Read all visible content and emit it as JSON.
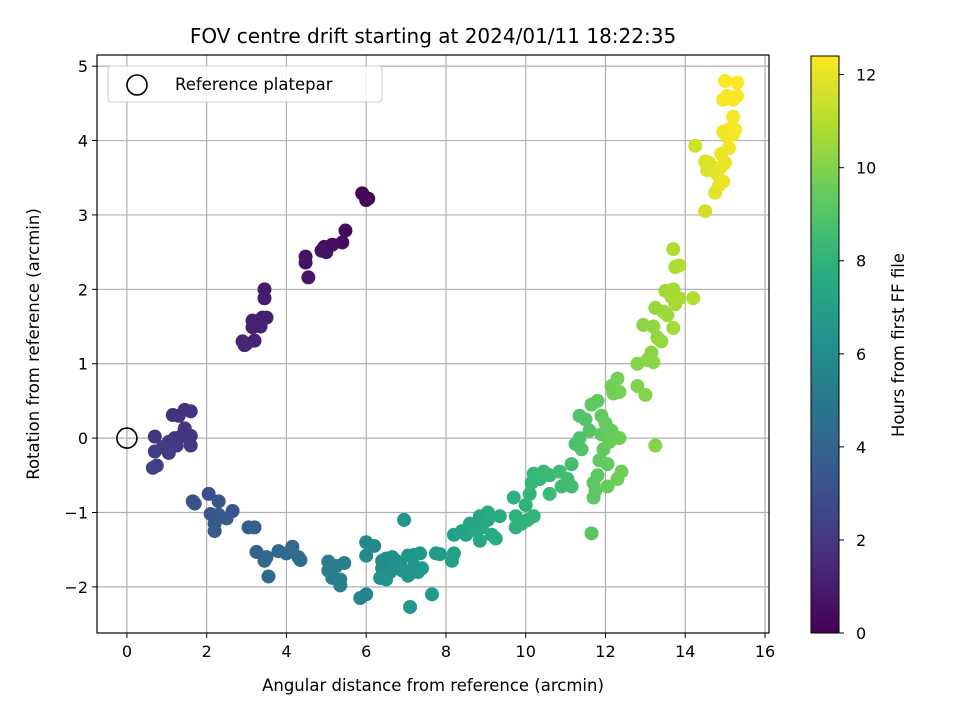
{
  "chart_data": {
    "type": "scatter",
    "title": "FOV centre drift starting at 2024/01/11 18:22:35",
    "xlabel": "Angular distance from reference (arcmin)",
    "ylabel": "Rotation from reference (arcmin)",
    "xlim": [
      -0.75,
      16.1
    ],
    "ylim": [
      -2.62,
      5.15
    ],
    "xticks": [
      0,
      2,
      4,
      6,
      8,
      10,
      12,
      14,
      16
    ],
    "yticks": [
      -2,
      -1,
      0,
      1,
      2,
      3,
      4,
      5
    ],
    "grid": true,
    "legend": {
      "placement": "top-left",
      "entries": [
        {
          "label": "Reference platepar",
          "marker": "open-circle"
        }
      ]
    },
    "reference_point": {
      "x": 0,
      "y": 0
    },
    "colorbar": {
      "label": "Hours from first FF file",
      "range": [
        0,
        12.4
      ],
      "ticks": [
        0,
        2,
        4,
        6,
        8,
        10,
        12
      ],
      "colormap": "viridis"
    },
    "points": [
      {
        "x": 5.9,
        "y": 3.29,
        "c": 0.1
      },
      {
        "x": 6.05,
        "y": 3.22,
        "c": 0.15
      },
      {
        "x": 6.0,
        "y": 3.2,
        "c": 0.2
      },
      {
        "x": 5.48,
        "y": 2.79,
        "c": 0.3
      },
      {
        "x": 5.4,
        "y": 2.63,
        "c": 0.35
      },
      {
        "x": 5.15,
        "y": 2.6,
        "c": 0.45
      },
      {
        "x": 4.95,
        "y": 2.57,
        "c": 0.5
      },
      {
        "x": 5.0,
        "y": 2.5,
        "c": 0.55
      },
      {
        "x": 4.88,
        "y": 2.52,
        "c": 0.55
      },
      {
        "x": 4.48,
        "y": 2.44,
        "c": 0.6
      },
      {
        "x": 4.48,
        "y": 2.36,
        "c": 0.65
      },
      {
        "x": 4.55,
        "y": 2.16,
        "c": 0.7
      },
      {
        "x": 3.45,
        "y": 2.0,
        "c": 0.9
      },
      {
        "x": 3.45,
        "y": 1.88,
        "c": 0.95
      },
      {
        "x": 3.4,
        "y": 1.62,
        "c": 1.0
      },
      {
        "x": 3.5,
        "y": 1.62,
        "c": 1.05
      },
      {
        "x": 3.15,
        "y": 1.58,
        "c": 1.1
      },
      {
        "x": 3.3,
        "y": 1.55,
        "c": 1.1
      },
      {
        "x": 3.35,
        "y": 1.5,
        "c": 1.15
      },
      {
        "x": 3.15,
        "y": 1.49,
        "c": 1.15
      },
      {
        "x": 3.2,
        "y": 1.31,
        "c": 1.2
      },
      {
        "x": 2.9,
        "y": 1.3,
        "c": 1.2
      },
      {
        "x": 3.0,
        "y": 1.27,
        "c": 1.25
      },
      {
        "x": 2.95,
        "y": 1.25,
        "c": 1.25
      },
      {
        "x": 1.45,
        "y": 0.38,
        "c": 1.7
      },
      {
        "x": 1.6,
        "y": 0.36,
        "c": 1.75
      },
      {
        "x": 1.15,
        "y": 0.31,
        "c": 1.8
      },
      {
        "x": 1.3,
        "y": 0.3,
        "c": 1.8
      },
      {
        "x": 1.45,
        "y": 0.13,
        "c": 1.9
      },
      {
        "x": 1.6,
        "y": 0.03,
        "c": 1.95
      },
      {
        "x": 1.35,
        "y": 0.02,
        "c": 2.0
      },
      {
        "x": 1.2,
        "y": 0.0,
        "c": 2.0
      },
      {
        "x": 0.7,
        "y": 0.02,
        "c": 2.05
      },
      {
        "x": 1.05,
        "y": -0.05,
        "c": 2.1
      },
      {
        "x": 1.6,
        "y": -0.1,
        "c": 2.15
      },
      {
        "x": 1.25,
        "y": -0.1,
        "c": 2.15
      },
      {
        "x": 0.9,
        "y": -0.12,
        "c": 2.2
      },
      {
        "x": 0.7,
        "y": -0.18,
        "c": 2.25
      },
      {
        "x": 1.05,
        "y": -0.2,
        "c": 2.25
      },
      {
        "x": 0.75,
        "y": -0.37,
        "c": 2.35
      },
      {
        "x": 0.65,
        "y": -0.4,
        "c": 2.4
      },
      {
        "x": 2.05,
        "y": -0.75,
        "c": 3.05
      },
      {
        "x": 1.65,
        "y": -0.85,
        "c": 3.1
      },
      {
        "x": 1.7,
        "y": -0.88,
        "c": 3.15
      },
      {
        "x": 2.3,
        "y": -0.85,
        "c": 3.2
      },
      {
        "x": 2.65,
        "y": -0.98,
        "c": 3.3
      },
      {
        "x": 2.1,
        "y": -1.02,
        "c": 3.35
      },
      {
        "x": 2.3,
        "y": -1.03,
        "c": 3.4
      },
      {
        "x": 2.5,
        "y": -1.08,
        "c": 3.45
      },
      {
        "x": 2.2,
        "y": -1.15,
        "c": 3.5
      },
      {
        "x": 2.2,
        "y": -1.25,
        "c": 3.55
      },
      {
        "x": 3.05,
        "y": -1.2,
        "c": 3.7
      },
      {
        "x": 3.2,
        "y": -1.2,
        "c": 3.75
      },
      {
        "x": 3.25,
        "y": -1.53,
        "c": 4.0
      },
      {
        "x": 3.5,
        "y": -1.6,
        "c": 4.1
      },
      {
        "x": 3.45,
        "y": -1.65,
        "c": 4.15
      },
      {
        "x": 3.8,
        "y": -1.52,
        "c": 4.2
      },
      {
        "x": 4.0,
        "y": -1.55,
        "c": 4.25
      },
      {
        "x": 4.15,
        "y": -1.46,
        "c": 4.3
      },
      {
        "x": 4.3,
        "y": -1.6,
        "c": 4.35
      },
      {
        "x": 4.35,
        "y": -1.64,
        "c": 4.4
      },
      {
        "x": 3.55,
        "y": -1.86,
        "c": 4.3
      },
      {
        "x": 5.05,
        "y": -1.66,
        "c": 5.2
      },
      {
        "x": 5.05,
        "y": -1.78,
        "c": 5.25
      },
      {
        "x": 5.15,
        "y": -1.88,
        "c": 5.3
      },
      {
        "x": 5.35,
        "y": -1.9,
        "c": 5.35
      },
      {
        "x": 5.35,
        "y": -1.98,
        "c": 5.4
      },
      {
        "x": 5.45,
        "y": -1.68,
        "c": 5.35
      },
      {
        "x": 5.25,
        "y": -1.72,
        "c": 5.3
      },
      {
        "x": 5.85,
        "y": -2.15,
        "c": 5.6
      },
      {
        "x": 6.0,
        "y": -2.1,
        "c": 5.65
      },
      {
        "x": 6.0,
        "y": -1.4,
        "c": 5.7
      },
      {
        "x": 6.2,
        "y": -1.45,
        "c": 5.75
      },
      {
        "x": 6.0,
        "y": -1.58,
        "c": 5.8
      },
      {
        "x": 6.4,
        "y": -1.65,
        "c": 5.9
      },
      {
        "x": 6.5,
        "y": -1.62,
        "c": 5.95
      },
      {
        "x": 6.65,
        "y": -1.6,
        "c": 6.0
      },
      {
        "x": 6.4,
        "y": -1.75,
        "c": 6.05
      },
      {
        "x": 6.6,
        "y": -1.8,
        "c": 6.1
      },
      {
        "x": 6.75,
        "y": -1.65,
        "c": 6.15
      },
      {
        "x": 6.85,
        "y": -1.7,
        "c": 6.2
      },
      {
        "x": 6.35,
        "y": -1.88,
        "c": 6.25
      },
      {
        "x": 6.5,
        "y": -1.9,
        "c": 6.3
      },
      {
        "x": 6.9,
        "y": -1.78,
        "c": 6.35
      },
      {
        "x": 7.05,
        "y": -1.58,
        "c": 6.4
      },
      {
        "x": 7.2,
        "y": -1.57,
        "c": 6.45
      },
      {
        "x": 7.0,
        "y": -1.8,
        "c": 6.5
      },
      {
        "x": 7.2,
        "y": -1.72,
        "c": 6.55
      },
      {
        "x": 7.3,
        "y": -1.8,
        "c": 6.55
      },
      {
        "x": 7.4,
        "y": -1.75,
        "c": 6.6
      },
      {
        "x": 7.35,
        "y": -1.55,
        "c": 6.6
      },
      {
        "x": 7.05,
        "y": -1.85,
        "c": 6.5
      },
      {
        "x": 6.95,
        "y": -1.1,
        "c": 6.5
      },
      {
        "x": 7.1,
        "y": -2.27,
        "c": 6.6
      },
      {
        "x": 7.65,
        "y": -2.1,
        "c": 6.7
      },
      {
        "x": 7.75,
        "y": -1.55,
        "c": 6.8
      },
      {
        "x": 7.85,
        "y": -1.56,
        "c": 6.85
      },
      {
        "x": 6.75,
        "y": -1.72,
        "c": 6.2
      },
      {
        "x": 8.15,
        "y": -1.65,
        "c": 7.0
      },
      {
        "x": 8.2,
        "y": -1.55,
        "c": 7.05
      },
      {
        "x": 8.2,
        "y": -1.3,
        "c": 7.1
      },
      {
        "x": 8.4,
        "y": -1.25,
        "c": 7.15
      },
      {
        "x": 8.5,
        "y": -1.3,
        "c": 7.2
      },
      {
        "x": 8.6,
        "y": -1.15,
        "c": 7.3
      },
      {
        "x": 8.85,
        "y": -1.05,
        "c": 7.35
      },
      {
        "x": 8.85,
        "y": -1.38,
        "c": 7.4
      },
      {
        "x": 8.9,
        "y": -1.2,
        "c": 7.45
      },
      {
        "x": 9.05,
        "y": -1.1,
        "c": 7.5
      },
      {
        "x": 9.15,
        "y": -1.3,
        "c": 7.55
      },
      {
        "x": 9.25,
        "y": -1.35,
        "c": 7.6
      },
      {
        "x": 9.35,
        "y": -1.05,
        "c": 7.6
      },
      {
        "x": 9.05,
        "y": -1.0,
        "c": 7.55
      },
      {
        "x": 8.75,
        "y": -1.25,
        "c": 7.45
      },
      {
        "x": 9.7,
        "y": -0.8,
        "c": 7.8
      },
      {
        "x": 9.75,
        "y": -1.05,
        "c": 7.85
      },
      {
        "x": 9.75,
        "y": -1.2,
        "c": 7.9
      },
      {
        "x": 9.9,
        "y": -1.15,
        "c": 7.95
      },
      {
        "x": 10.0,
        "y": -0.9,
        "c": 8.0
      },
      {
        "x": 10.05,
        "y": -1.1,
        "c": 8.05
      },
      {
        "x": 10.2,
        "y": -1.05,
        "c": 8.1
      },
      {
        "x": 10.1,
        "y": -0.75,
        "c": 8.15
      },
      {
        "x": 10.15,
        "y": -0.6,
        "c": 8.2
      },
      {
        "x": 10.2,
        "y": -0.48,
        "c": 8.25
      },
      {
        "x": 10.35,
        "y": -0.55,
        "c": 8.3
      },
      {
        "x": 10.45,
        "y": -0.45,
        "c": 8.35
      },
      {
        "x": 10.6,
        "y": -0.5,
        "c": 8.4
      },
      {
        "x": 10.6,
        "y": -0.75,
        "c": 8.45
      },
      {
        "x": 10.9,
        "y": -0.65,
        "c": 8.5
      },
      {
        "x": 10.85,
        "y": -0.45,
        "c": 8.55
      },
      {
        "x": 11.05,
        "y": -0.55,
        "c": 8.6
      },
      {
        "x": 11.15,
        "y": -0.65,
        "c": 8.65
      },
      {
        "x": 11.15,
        "y": -0.35,
        "c": 8.7
      },
      {
        "x": 11.25,
        "y": -0.08,
        "c": 8.8
      },
      {
        "x": 11.35,
        "y": 0.0,
        "c": 8.85
      },
      {
        "x": 11.4,
        "y": -0.15,
        "c": 8.9
      },
      {
        "x": 11.35,
        "y": 0.3,
        "c": 8.95
      },
      {
        "x": 11.5,
        "y": 0.25,
        "c": 9.0
      },
      {
        "x": 11.6,
        "y": 0.1,
        "c": 9.05
      },
      {
        "x": 11.65,
        "y": -1.28,
        "c": 9.1
      },
      {
        "x": 11.7,
        "y": -0.6,
        "c": 9.15
      },
      {
        "x": 11.7,
        "y": -0.8,
        "c": 9.2
      },
      {
        "x": 11.75,
        "y": -0.7,
        "c": 9.2
      },
      {
        "x": 11.8,
        "y": -0.5,
        "c": 9.25
      },
      {
        "x": 11.85,
        "y": -0.3,
        "c": 9.3
      },
      {
        "x": 11.9,
        "y": 0.05,
        "c": 9.3
      },
      {
        "x": 11.9,
        "y": 0.3,
        "c": 9.35
      },
      {
        "x": 11.95,
        "y": -0.15,
        "c": 9.35
      },
      {
        "x": 12.0,
        "y": 0.2,
        "c": 9.4
      },
      {
        "x": 12.05,
        "y": -0.35,
        "c": 9.4
      },
      {
        "x": 12.1,
        "y": -0.05,
        "c": 9.45
      },
      {
        "x": 12.15,
        "y": 0.1,
        "c": 9.45
      },
      {
        "x": 12.05,
        "y": -0.65,
        "c": 9.45
      },
      {
        "x": 11.65,
        "y": 0.45,
        "c": 9.3
      },
      {
        "x": 11.8,
        "y": 0.5,
        "c": 9.3
      },
      {
        "x": 12.3,
        "y": -0.55,
        "c": 9.6
      },
      {
        "x": 12.4,
        "y": -0.45,
        "c": 9.65
      },
      {
        "x": 12.2,
        "y": 0.0,
        "c": 9.55
      },
      {
        "x": 12.35,
        "y": 0.0,
        "c": 9.6
      },
      {
        "x": 12.15,
        "y": 0.7,
        "c": 9.7
      },
      {
        "x": 12.3,
        "y": 0.8,
        "c": 9.75
      },
      {
        "x": 12.35,
        "y": 0.62,
        "c": 9.8
      },
      {
        "x": 12.2,
        "y": 0.6,
        "c": 9.7
      },
      {
        "x": 12.8,
        "y": 0.7,
        "c": 10.0
      },
      {
        "x": 13.0,
        "y": 0.58,
        "c": 10.05
      },
      {
        "x": 12.8,
        "y": 1.0,
        "c": 10.1
      },
      {
        "x": 13.05,
        "y": 1.05,
        "c": 10.15
      },
      {
        "x": 13.2,
        "y": 1.02,
        "c": 10.2
      },
      {
        "x": 13.15,
        "y": 1.15,
        "c": 10.2
      },
      {
        "x": 13.25,
        "y": -0.1,
        "c": 10.1
      },
      {
        "x": 12.95,
        "y": 1.52,
        "c": 10.25
      },
      {
        "x": 13.2,
        "y": 1.5,
        "c": 10.3
      },
      {
        "x": 13.3,
        "y": 1.35,
        "c": 10.35
      },
      {
        "x": 13.4,
        "y": 1.3,
        "c": 10.4
      },
      {
        "x": 13.25,
        "y": 1.75,
        "c": 10.45
      },
      {
        "x": 13.45,
        "y": 1.7,
        "c": 10.5
      },
      {
        "x": 13.55,
        "y": 1.65,
        "c": 10.55
      },
      {
        "x": 13.5,
        "y": 1.98,
        "c": 10.6
      },
      {
        "x": 13.65,
        "y": 1.9,
        "c": 10.65
      },
      {
        "x": 13.7,
        "y": 2.0,
        "c": 10.7
      },
      {
        "x": 13.75,
        "y": 1.8,
        "c": 10.75
      },
      {
        "x": 13.7,
        "y": 1.48,
        "c": 10.7
      },
      {
        "x": 13.85,
        "y": 1.88,
        "c": 10.8
      },
      {
        "x": 13.75,
        "y": 2.3,
        "c": 10.85
      },
      {
        "x": 13.85,
        "y": 2.32,
        "c": 10.9
      },
      {
        "x": 13.7,
        "y": 2.54,
        "c": 10.9
      },
      {
        "x": 14.2,
        "y": 1.88,
        "c": 10.95
      },
      {
        "x": 14.25,
        "y": 3.93,
        "c": 11.5
      },
      {
        "x": 14.5,
        "y": 3.05,
        "c": 11.6
      },
      {
        "x": 14.5,
        "y": 3.72,
        "c": 11.7
      },
      {
        "x": 14.55,
        "y": 3.6,
        "c": 11.75
      },
      {
        "x": 14.6,
        "y": 3.7,
        "c": 11.8
      },
      {
        "x": 14.75,
        "y": 3.3,
        "c": 11.85
      },
      {
        "x": 14.8,
        "y": 3.55,
        "c": 11.9
      },
      {
        "x": 14.85,
        "y": 3.4,
        "c": 11.95
      },
      {
        "x": 14.95,
        "y": 3.45,
        "c": 12.0
      },
      {
        "x": 14.9,
        "y": 3.65,
        "c": 12.0
      },
      {
        "x": 14.9,
        "y": 3.82,
        "c": 12.05
      },
      {
        "x": 15.0,
        "y": 3.7,
        "c": 12.05
      },
      {
        "x": 14.95,
        "y": 4.12,
        "c": 12.1
      },
      {
        "x": 15.05,
        "y": 4.05,
        "c": 12.1
      },
      {
        "x": 15.1,
        "y": 4.15,
        "c": 12.15
      },
      {
        "x": 15.1,
        "y": 3.9,
        "c": 12.15
      },
      {
        "x": 15.2,
        "y": 4.08,
        "c": 12.2
      },
      {
        "x": 15.2,
        "y": 4.32,
        "c": 12.2
      },
      {
        "x": 15.25,
        "y": 4.15,
        "c": 12.25
      },
      {
        "x": 14.95,
        "y": 4.55,
        "c": 12.25
      },
      {
        "x": 15.05,
        "y": 4.6,
        "c": 12.3
      },
      {
        "x": 15.2,
        "y": 4.55,
        "c": 12.3
      },
      {
        "x": 15.3,
        "y": 4.6,
        "c": 12.35
      },
      {
        "x": 15.0,
        "y": 4.8,
        "c": 12.35
      },
      {
        "x": 15.3,
        "y": 4.78,
        "c": 12.4
      }
    ]
  }
}
